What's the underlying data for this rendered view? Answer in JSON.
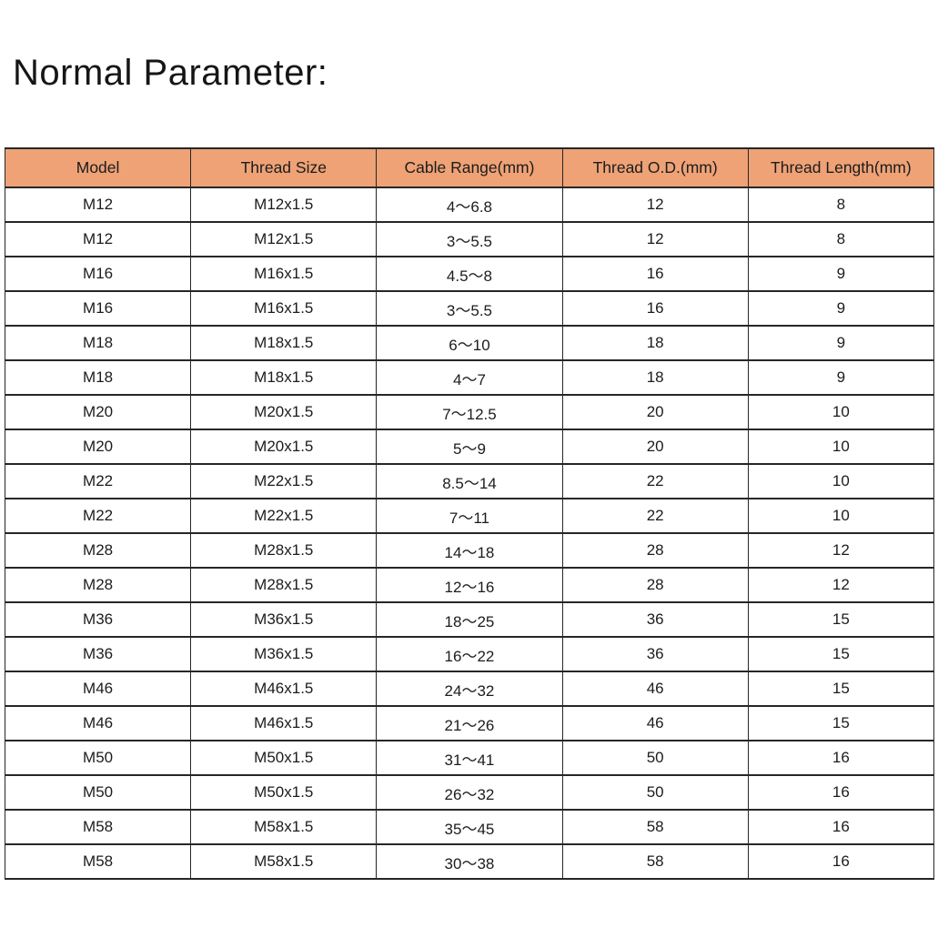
{
  "page": {
    "title": "Normal Parameter:"
  },
  "table": {
    "header_bg": "#EEA276",
    "border_color": "#262626",
    "columns": [
      "Model",
      "Thread Size",
      "Cable Range(mm)",
      "Thread O.D.(mm)",
      "Thread Length(mm)"
    ],
    "rows": [
      [
        "M12",
        "M12x1.5",
        "4～6.8",
        "12",
        "8"
      ],
      [
        "M12",
        "M12x1.5",
        "3～5.5",
        "12",
        "8"
      ],
      [
        "M16",
        "M16x1.5",
        "4.5～8",
        "16",
        "9"
      ],
      [
        "M16",
        "M16x1.5",
        "3～5.5",
        "16",
        "9"
      ],
      [
        "M18",
        "M18x1.5",
        "6～10",
        "18",
        "9"
      ],
      [
        "M18",
        "M18x1.5",
        "4～7",
        "18",
        "9"
      ],
      [
        "M20",
        "M20x1.5",
        "7～12.5",
        "20",
        "10"
      ],
      [
        "M20",
        "M20x1.5",
        "5～9",
        "20",
        "10"
      ],
      [
        "M22",
        "M22x1.5",
        "8.5～14",
        "22",
        "10"
      ],
      [
        "M22",
        "M22x1.5",
        "7～11",
        "22",
        "10"
      ],
      [
        "M28",
        "M28x1.5",
        "14～18",
        "28",
        "12"
      ],
      [
        "M28",
        "M28x1.5",
        "12～16",
        "28",
        "12"
      ],
      [
        "M36",
        "M36x1.5",
        "18～25",
        "36",
        "15"
      ],
      [
        "M36",
        "M36x1.5",
        "16～22",
        "36",
        "15"
      ],
      [
        "M46",
        "M46x1.5",
        "24～32",
        "46",
        "15"
      ],
      [
        "M46",
        "M46x1.5",
        "21～26",
        "46",
        "15"
      ],
      [
        "M50",
        "M50x1.5",
        "31～41",
        "50",
        "16"
      ],
      [
        "M50",
        "M50x1.5",
        "26～32",
        "50",
        "16"
      ],
      [
        "M58",
        "M58x1.5",
        "35～45",
        "58",
        "16"
      ],
      [
        "M58",
        "M58x1.5",
        "30～38",
        "58",
        "16"
      ]
    ]
  },
  "chart_data": {
    "type": "table",
    "title": "Normal Parameter:",
    "columns": [
      "Model",
      "Thread Size",
      "Cable Range(mm)",
      "Thread O.D.(mm)",
      "Thread Length(mm)"
    ],
    "rows": [
      [
        "M12",
        "M12x1.5",
        "4～6.8",
        "12",
        "8"
      ],
      [
        "M12",
        "M12x1.5",
        "3～5.5",
        "12",
        "8"
      ],
      [
        "M16",
        "M16x1.5",
        "4.5～8",
        "16",
        "9"
      ],
      [
        "M16",
        "M16x1.5",
        "3～5.5",
        "16",
        "9"
      ],
      [
        "M18",
        "M18x1.5",
        "6～10",
        "18",
        "9"
      ],
      [
        "M18",
        "M18x1.5",
        "4～7",
        "18",
        "9"
      ],
      [
        "M20",
        "M20x1.5",
        "7～12.5",
        "20",
        "10"
      ],
      [
        "M20",
        "M20x1.5",
        "5～9",
        "20",
        "10"
      ],
      [
        "M22",
        "M22x1.5",
        "8.5～14",
        "22",
        "10"
      ],
      [
        "M22",
        "M22x1.5",
        "7～11",
        "22",
        "10"
      ],
      [
        "M28",
        "M28x1.5",
        "14～18",
        "28",
        "12"
      ],
      [
        "M28",
        "M28x1.5",
        "12～16",
        "28",
        "12"
      ],
      [
        "M36",
        "M36x1.5",
        "18～25",
        "36",
        "15"
      ],
      [
        "M36",
        "M36x1.5",
        "16～22",
        "36",
        "15"
      ],
      [
        "M46",
        "M46x1.5",
        "24～32",
        "46",
        "15"
      ],
      [
        "M46",
        "M46x1.5",
        "21～26",
        "46",
        "15"
      ],
      [
        "M50",
        "M50x1.5",
        "31～41",
        "50",
        "16"
      ],
      [
        "M50",
        "M50x1.5",
        "26～32",
        "50",
        "16"
      ],
      [
        "M58",
        "M58x1.5",
        "35～45",
        "58",
        "16"
      ],
      [
        "M58",
        "M58x1.5",
        "30～38",
        "58",
        "16"
      ]
    ]
  }
}
